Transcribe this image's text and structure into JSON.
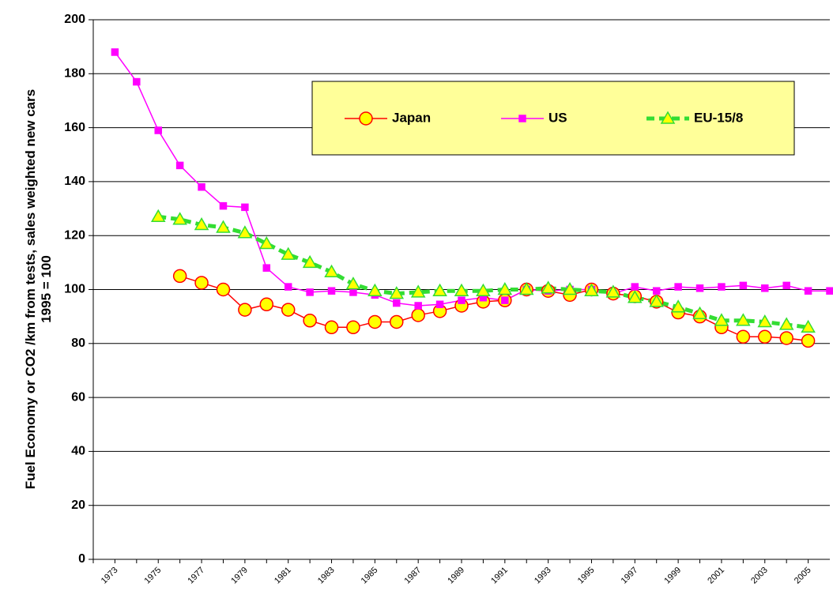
{
  "chart_data": {
    "type": "line",
    "y_label": "Fuel Economy or CO2 /km from tests, sales weighted new cars",
    "y_label_2": "1995 = 100",
    "categories": [
      "1973",
      null,
      "1975",
      null,
      "1977",
      null,
      "1979",
      null,
      "1981",
      null,
      "1983",
      null,
      "1985",
      null,
      "1987",
      null,
      "1989",
      null,
      "1991",
      null,
      "1993",
      null,
      "1995",
      null,
      "1997",
      null,
      "1999",
      null,
      "2001",
      null,
      "2003",
      null,
      "2005",
      null
    ],
    "series": [
      {
        "name": "Japan",
        "color": "#ff0000",
        "marker": "circle",
        "marker_fill": "#ffff00",
        "dash": false,
        "values": [
          null,
          null,
          null,
          105,
          102.5,
          100,
          92.5,
          94.5,
          92.5,
          88.5,
          86,
          86,
          88,
          88,
          90.5,
          92,
          94,
          95.5,
          96,
          100,
          99.5,
          98,
          100,
          98.5,
          97.5,
          95.5,
          91.5,
          90,
          86,
          82.5,
          82.5,
          82,
          81,
          null
        ]
      },
      {
        "name": "US",
        "color": "#ff00ff",
        "marker": "square",
        "marker_fill": "#ff00ff",
        "dash": false,
        "values": [
          188,
          177,
          159,
          146,
          138,
          131,
          130.5,
          108,
          101,
          99,
          99.5,
          99,
          98,
          95,
          94,
          94.5,
          96,
          97,
          96,
          100,
          99.5,
          100,
          100,
          98.5,
          101,
          99.5,
          101,
          100.5,
          101,
          101.5,
          100.5,
          101.5,
          99.5,
          99.5
        ]
      },
      {
        "name": "EU-15/8",
        "color": "#33dd33",
        "marker": "triangle",
        "marker_fill": "#ffff00",
        "dash": true,
        "values": [
          null,
          null,
          127,
          126,
          124,
          123,
          121,
          117,
          113,
          110,
          106.5,
          102,
          99.5,
          98.5,
          99,
          99.5,
          99.5,
          99.5,
          100,
          100,
          100.5,
          100,
          99.5,
          99,
          97,
          95.5,
          93.5,
          91,
          88.5,
          88.5,
          88,
          87,
          86,
          null
        ]
      }
    ],
    "ylim": [
      0,
      200
    ],
    "yticks": [
      0,
      20,
      40,
      60,
      80,
      100,
      120,
      140,
      160,
      180,
      200
    ],
    "grid": true,
    "legend_position": "top-right",
    "legend_fill": "#ffff99"
  }
}
